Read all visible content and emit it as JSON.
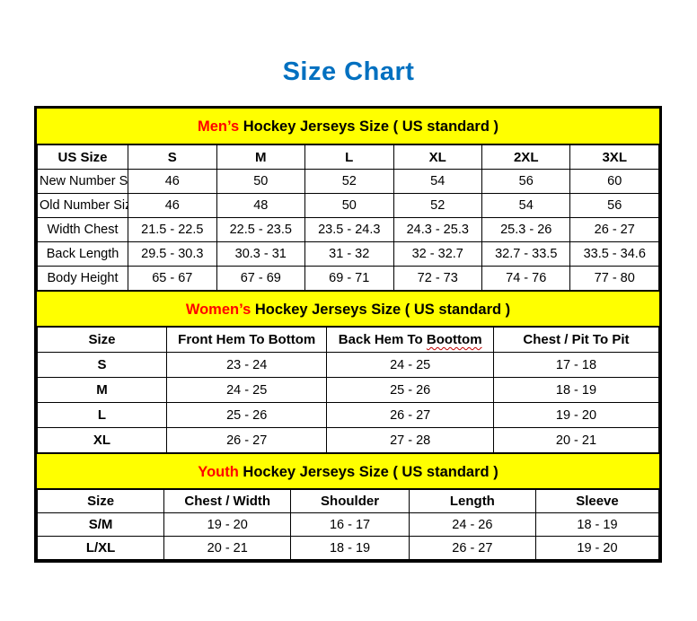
{
  "page": {
    "title": "Size Chart"
  },
  "colors": {
    "title_blue": "#0070C0",
    "highlight_red": "#FF0000",
    "band_yellow": "#FFFF00",
    "squiggle_red": "#C00000"
  },
  "chart_data": [
    {
      "type": "table",
      "id": "mens",
      "band": {
        "highlight": "Men’s",
        "rest": " Hockey Jerseys Size ( US standard )"
      },
      "bold_row_labels": false,
      "columns": [
        "US Size",
        "S",
        "M",
        "L",
        "XL",
        "2XL",
        "3XL"
      ],
      "rows": [
        {
          "label": "New Number Size",
          "values": [
            "46",
            "50",
            "52",
            "54",
            "56",
            "60"
          ]
        },
        {
          "label": "Old Number Size",
          "values": [
            "46",
            "48",
            "50",
            "52",
            "54",
            "56"
          ]
        },
        {
          "label": "Width Chest",
          "values": [
            "21.5 - 22.5",
            "22.5 - 23.5",
            "23.5 - 24.3",
            "24.3 - 25.3",
            "25.3 - 26",
            "26 - 27"
          ]
        },
        {
          "label": "Back Length",
          "values": [
            "29.5 - 30.3",
            "30.3 - 31",
            "31 - 32",
            "32 - 32.7",
            "32.7 - 33.5",
            "33.5 - 34.6"
          ]
        },
        {
          "label": "Body Height",
          "values": [
            "65 - 67",
            "67 - 69",
            "69 - 71",
            "72 - 73",
            "74 - 76",
            "77 - 80"
          ]
        }
      ]
    },
    {
      "type": "table",
      "id": "womens",
      "band": {
        "highlight": "Women’s",
        "rest": " Hockey Jerseys Size ( US standard )"
      },
      "bold_row_labels": true,
      "columns": [
        "Size",
        "Front Hem To Bottom",
        {
          "label": "Back Hem To Boottom",
          "squiggle": "Boottom"
        },
        "Chest / Pit To Pit"
      ],
      "rows": [
        {
          "label": "S",
          "values": [
            "23 - 24",
            "24 - 25",
            "17 - 18"
          ]
        },
        {
          "label": "M",
          "values": [
            "24 - 25",
            "25 - 26",
            "18 - 19"
          ]
        },
        {
          "label": "L",
          "values": [
            "25 - 26",
            "26 - 27",
            "19 - 20"
          ]
        },
        {
          "label": "XL",
          "values": [
            "26 - 27",
            "27 - 28",
            "20 - 21"
          ]
        }
      ]
    },
    {
      "type": "table",
      "id": "youth",
      "band": {
        "highlight": "Youth",
        "rest": " Hockey Jerseys Size ( US standard )"
      },
      "bold_row_labels": true,
      "columns": [
        "Size",
        "Chest / Width",
        "Shoulder",
        "Length",
        "Sleeve"
      ],
      "rows": [
        {
          "label": "S/M",
          "values": [
            "19 - 20",
            "16 - 17",
            "24 - 26",
            "18 - 19"
          ]
        },
        {
          "label": "L/XL",
          "values": [
            "20 - 21",
            "18 - 19",
            "26 - 27",
            "19 - 20"
          ]
        }
      ]
    }
  ]
}
